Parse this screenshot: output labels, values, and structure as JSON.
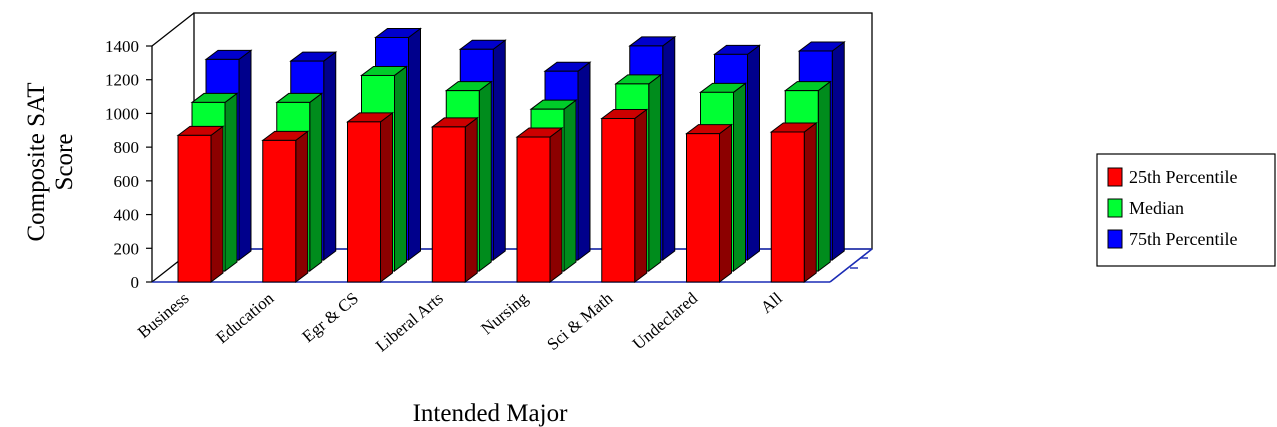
{
  "chart_data": {
    "type": "bar",
    "title": "",
    "xlabel": "Intended Major",
    "ylabel": [
      "Composite SAT",
      "Score"
    ],
    "ylim": [
      0,
      1400
    ],
    "yticks": [
      0,
      200,
      400,
      600,
      800,
      1000,
      1200,
      1400
    ],
    "grid": false,
    "legend_position": "right",
    "categories": [
      "Business",
      "Education",
      "Egr & CS",
      "Liberal Arts",
      "Nursing",
      "Sci & Math",
      "Undeclared",
      "All"
    ],
    "series": [
      {
        "name": "25th Percentile",
        "color": "#ff0000",
        "values": [
          870,
          840,
          950,
          920,
          860,
          970,
          880,
          890
        ]
      },
      {
        "name": "Median",
        "color": "#00ff33",
        "values": [
          1000,
          1000,
          1160,
          1070,
          960,
          1110,
          1060,
          1070
        ]
      },
      {
        "name": "75th Percentile",
        "color": "#0000ff",
        "values": [
          1190,
          1180,
          1320,
          1250,
          1120,
          1270,
          1220,
          1240
        ]
      }
    ]
  }
}
